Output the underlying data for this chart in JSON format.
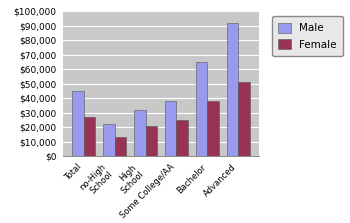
{
  "categories": [
    "Total",
    "no-High\nSchool",
    "High\nSchool",
    "Some College/AA",
    "Bachelor",
    "Advanced"
  ],
  "male": [
    45000,
    22000,
    32000,
    38000,
    65000,
    92000
  ],
  "female": [
    27000,
    13000,
    21000,
    25000,
    38000,
    51000
  ],
  "male_color": "#9999ee",
  "female_color": "#993355",
  "background_color": "#ffffff",
  "plot_bg_color": "#c8c8c8",
  "grid_color": "#aaaaaa",
  "ylim": [
    0,
    100000
  ],
  "yticks": [
    0,
    10000,
    20000,
    30000,
    40000,
    50000,
    60000,
    70000,
    80000,
    90000,
    100000
  ],
  "legend_labels": [
    "Male",
    "Female"
  ],
  "bar_width": 0.38
}
